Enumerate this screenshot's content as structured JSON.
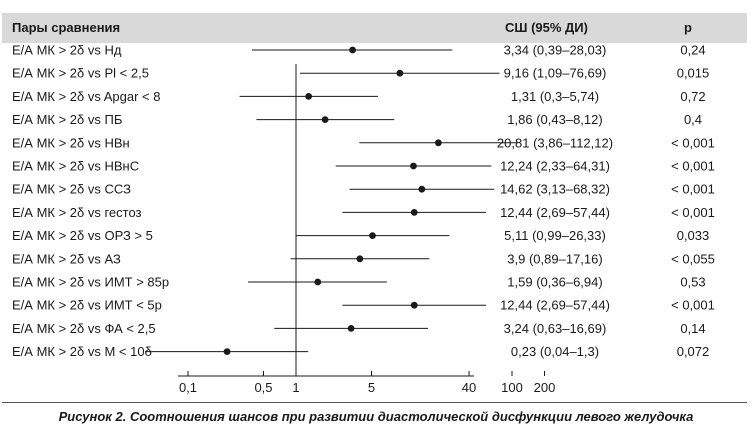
{
  "header": {
    "pairs_label": "Пары сравнения",
    "or_label": "СШ (95% ДИ)",
    "p_label": "p"
  },
  "caption": "Рисунок 2. Соотношения шансов при развитии диастолической дисфункции левого желудочка",
  "chart_data": {
    "type": "forest",
    "x_scale": "log",
    "xlim": [
      0.05,
      300
    ],
    "reference_line": 1,
    "x_ticks": [
      {
        "value": 0.1,
        "label": "0,1"
      },
      {
        "value": 0.5,
        "label": "0,5"
      },
      {
        "value": 1,
        "label": "1"
      },
      {
        "value": 5,
        "label": "5"
      },
      {
        "value": 40,
        "label": "40"
      },
      {
        "value": 100,
        "label": "100"
      },
      {
        "value": 200,
        "label": "200"
      }
    ],
    "rows": [
      {
        "label": "Е/А МК > 2δ vs Нд",
        "or": 3.34,
        "lo": 0.39,
        "hi": 28.03,
        "ci_text": "3,34 (0,39–28,03)",
        "p": "0,24"
      },
      {
        "label": "Е/А МК > 2δ vs Pl < 2,5",
        "or": 9.16,
        "lo": 1.09,
        "hi": 76.69,
        "ci_text": "9,16 (1,09–76,69)",
        "p": "0,015"
      },
      {
        "label": "Е/А МК > 2δ vs Apgar < 8",
        "or": 1.31,
        "lo": 0.3,
        "hi": 5.74,
        "ci_text": "1,31 (0,3–5,74)",
        "p": "0,72"
      },
      {
        "label": "Е/А МК > 2δ vs ПБ",
        "or": 1.86,
        "lo": 0.43,
        "hi": 8.12,
        "ci_text": "1,86 (0,43–8,12)",
        "p": "0,4"
      },
      {
        "label": "Е/А МК > 2δ vs НВн",
        "or": 20.81,
        "lo": 3.86,
        "hi": 112.12,
        "ci_text": "20,81 (3,86–112,12)",
        "p": "< 0,001"
      },
      {
        "label": "Е/А МК > 2δ vs НВнС",
        "or": 12.24,
        "lo": 2.33,
        "hi": 64.31,
        "ci_text": "12,24 (2,33–64,31)",
        "p": "< 0,001"
      },
      {
        "label": "Е/А МК > 2δ vs ССЗ",
        "or": 14.62,
        "lo": 3.13,
        "hi": 68.32,
        "ci_text": "14,62 (3,13–68,32)",
        "p": "< 0,001"
      },
      {
        "label": "Е/А МК > 2δ vs гестоз",
        "or": 12.44,
        "lo": 2.69,
        "hi": 57.44,
        "ci_text": "12,44 (2,69–57,44)",
        "p": "< 0,001"
      },
      {
        "label": "Е/А МК > 2δ vs ОРЗ > 5",
        "or": 5.11,
        "lo": 0.99,
        "hi": 26.33,
        "ci_text": "5,11 (0,99–26,33)",
        "p": "0,033"
      },
      {
        "label": "Е/А МК > 2δ vs АЗ",
        "or": 3.9,
        "lo": 0.89,
        "hi": 17.16,
        "ci_text": "3,9 (0,89–17,16)",
        "p": "< 0,055"
      },
      {
        "label": "Е/А МК > 2δ vs ИМТ > 85р",
        "or": 1.59,
        "lo": 0.36,
        "hi": 6.94,
        "ci_text": "1,59 (0,36–6,94)",
        "p": "0,53"
      },
      {
        "label": "Е/А МК > 2δ vs ИМТ < 5р",
        "or": 12.44,
        "lo": 2.69,
        "hi": 57.44,
        "ci_text": "12,44 (2,69–57,44)",
        "p": "< 0,001"
      },
      {
        "label": "Е/А МК > 2δ vs ФА < 2,5",
        "or": 3.24,
        "lo": 0.63,
        "hi": 16.69,
        "ci_text": "3,24 (0,63–16,69)",
        "p": "0,14"
      },
      {
        "label": "Е/А МК > 2δ vs М < 10δ",
        "or": 0.23,
        "lo": 0.04,
        "hi": 1.3,
        "ci_text": "0,23 (0,04–1,3)",
        "p": "0,072"
      }
    ],
    "colors": {
      "header_band": "#d9d9d9",
      "marks": "#1a1a1a"
    }
  }
}
